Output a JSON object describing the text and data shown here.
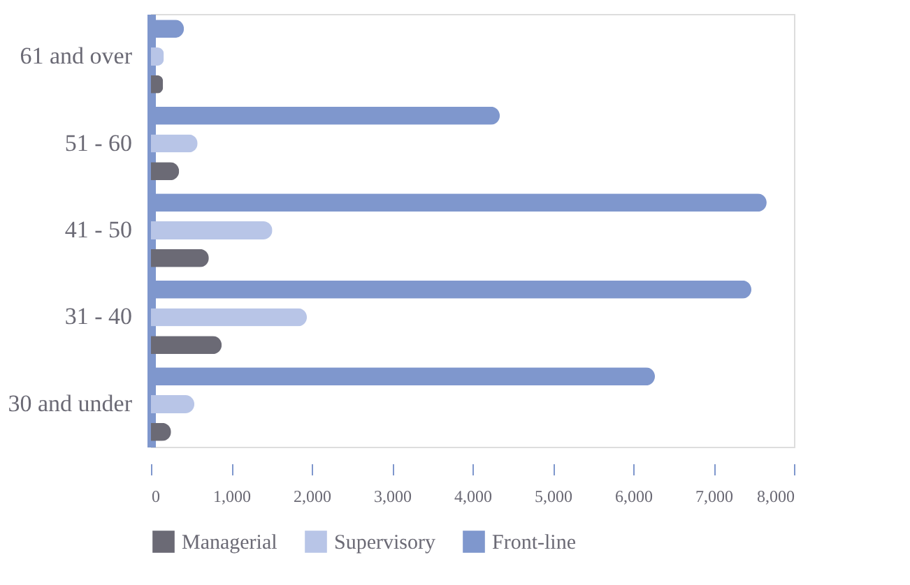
{
  "chart_data": {
    "type": "bar",
    "orientation": "horizontal",
    "categories": [
      "61 and over",
      "51 - 60",
      "41 - 50",
      "31 - 40",
      "30 and under"
    ],
    "series": [
      {
        "name": "Managerial",
        "color": "#6b6a75",
        "values": [
          150,
          350,
          720,
          880,
          250
        ]
      },
      {
        "name": "Supervisory",
        "color": "#b8c5e7",
        "values": [
          160,
          580,
          1510,
          1940,
          540
        ]
      },
      {
        "name": "Front-line",
        "color": "#7f97cd",
        "values": [
          410,
          4340,
          7660,
          7470,
          6270
        ]
      }
    ],
    "xlim": [
      0,
      8000
    ],
    "xticks": [
      {
        "value": 0,
        "label": "0"
      },
      {
        "value": 1000,
        "label": "1,000"
      },
      {
        "value": 2000,
        "label": "2,000"
      },
      {
        "value": 3000,
        "label": "3,000"
      },
      {
        "value": 4000,
        "label": "4,000"
      },
      {
        "value": 5000,
        "label": "5,000"
      },
      {
        "value": 6000,
        "label": "6,000"
      },
      {
        "value": 7000,
        "label": "7,000"
      },
      {
        "value": 8000,
        "label": "8,000"
      }
    ],
    "grid": false,
    "legend": "bottom"
  }
}
